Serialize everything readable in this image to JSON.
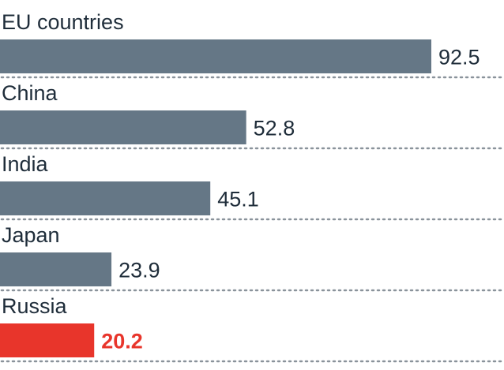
{
  "chart_data": {
    "type": "bar",
    "orientation": "horizontal",
    "categories": [
      "EU countries",
      "China",
      "India",
      "Japan",
      "Russia"
    ],
    "values": [
      92.5,
      52.8,
      45.1,
      23.9,
      20.2
    ],
    "value_labels": [
      "92.5",
      "52.8",
      "45.1",
      "23.9",
      "20.2"
    ],
    "highlight_index": 4,
    "xlim": [
      0,
      100
    ],
    "grid": false,
    "colors": {
      "bar": "#657786",
      "highlight": "#e8352b",
      "text": "#1f2d3a",
      "separator": "#8a939b"
    }
  }
}
